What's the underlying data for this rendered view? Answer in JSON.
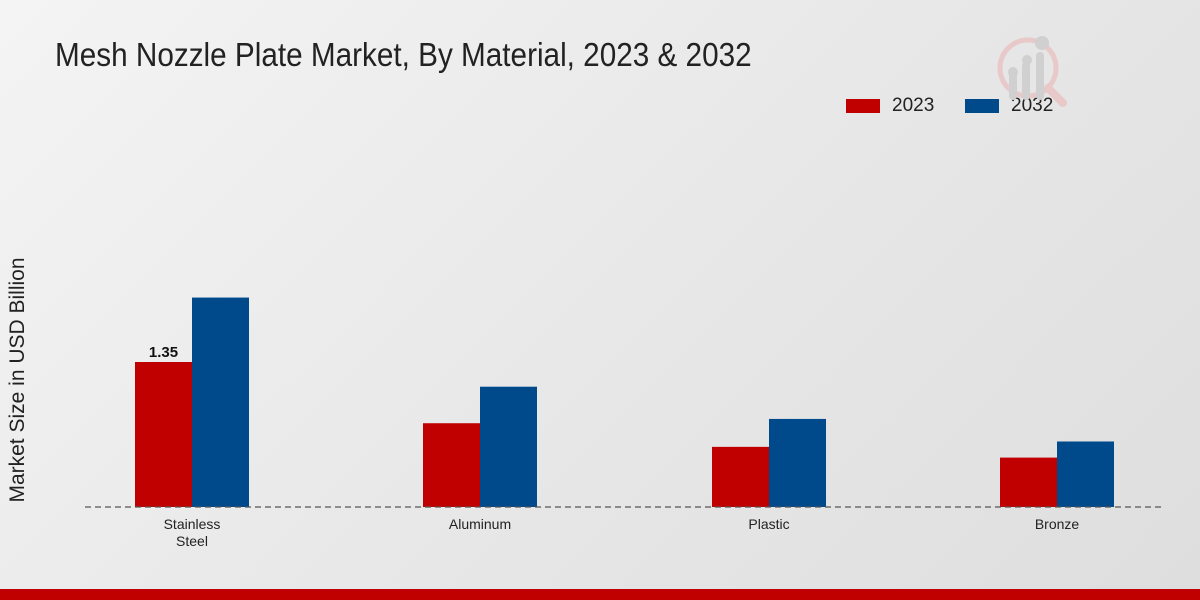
{
  "chart_data": {
    "type": "bar",
    "title": "Mesh Nozzle Plate Market, By Material, 2023 & 2032",
    "xlabel": "",
    "ylabel": "Market Size in USD Billion",
    "categories": [
      "Stainless Steel",
      "Aluminum",
      "Plastic",
      "Bronze"
    ],
    "category_lines": [
      [
        "Stainless",
        "Steel"
      ],
      [
        "Aluminum"
      ],
      [
        "Plastic"
      ],
      [
        "Bronze"
      ]
    ],
    "series": [
      {
        "name": "2023",
        "color": "#c00000",
        "values": [
          1.35,
          0.78,
          0.56,
          0.46
        ]
      },
      {
        "name": "2032",
        "color": "#004a8c",
        "values": [
          1.95,
          1.12,
          0.82,
          0.61
        ]
      }
    ],
    "data_labels": [
      {
        "series": 0,
        "index": 0,
        "text": "1.35"
      }
    ],
    "ylim": [
      0,
      2.6
    ],
    "grid": false,
    "legend": "top-right"
  }
}
